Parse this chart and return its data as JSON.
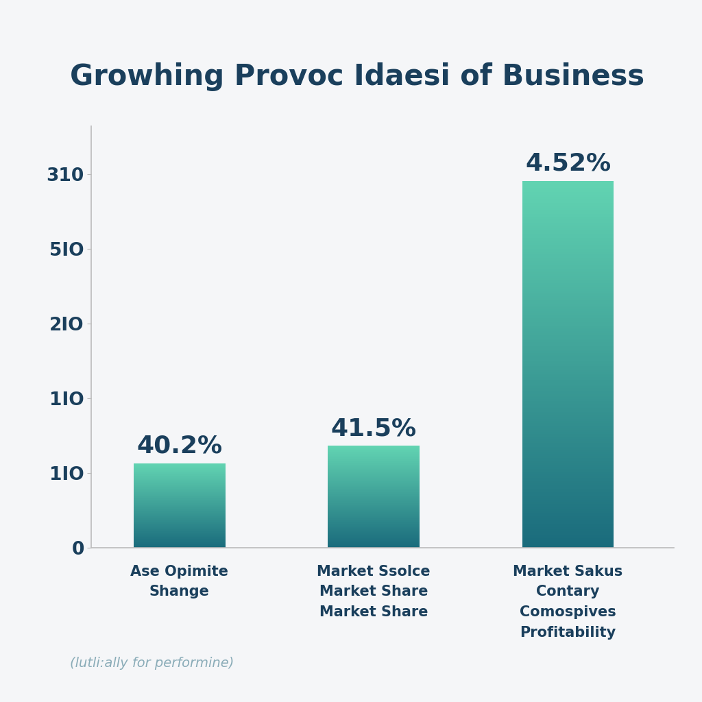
{
  "title": "Growhing Provoc Idaesi of Business",
  "title_color": "#1a3f5c",
  "title_fontsize": 30,
  "title_fontweight": "bold",
  "background_color": "#f5f6f8",
  "bar_labels": [
    "Ase Opimite\nShange",
    "Market Ssolce\nMarket Share\nMarket Share",
    "Market Sakus\nContary\nComospives\nProfitability"
  ],
  "bar_values": [
    62,
    75,
    270
  ],
  "bar_percentages": [
    "40.2%",
    "41.5%",
    "4.52%"
  ],
  "ytick_positions": [
    0,
    55,
    110,
    165,
    220,
    275
  ],
  "ytick_labels": [
    "0",
    "1IO",
    "1IO",
    "2IO",
    "5IO",
    "310"
  ],
  "ylim_max": 310,
  "bar_color_top": "#62d4b2",
  "bar_color_bottom": "#1a6b7c",
  "bar_width": 0.52,
  "pct_label_color": "#1a3f5c",
  "pct_label_fontsize": 26,
  "xlabel_fontsize": 15,
  "xlabel_color": "#1a3f5c",
  "footer_text": "(lutli:ally for performine)",
  "footer_color": "#8aacb8",
  "footer_fontsize": 14,
  "axis_color": "#bbbbbb",
  "tick_label_color": "#1a3f5c",
  "tick_label_fontsize": 19,
  "x_positions": [
    0.5,
    1.6,
    2.7
  ],
  "xlim": [
    0.0,
    3.3
  ]
}
